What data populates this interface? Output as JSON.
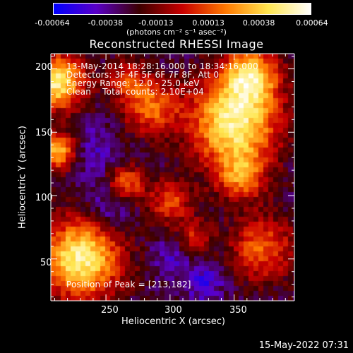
{
  "colorbar": {
    "tick_labels": [
      "-0.00064",
      "-0.00038",
      "-0.00013",
      "0.00013",
      "0.00038",
      "0.00064"
    ],
    "tick_values": [
      -0.00064,
      -0.00038,
      -0.00013,
      0.00013,
      0.00038,
      0.00064
    ],
    "units_label": "(photons cm⁻² s⁻¹ asec⁻²)",
    "range": [
      -0.00064,
      0.00064
    ],
    "stops": [
      "#0000ff",
      "#5a00c8",
      "#3c0000",
      "#c80000",
      "#ff7800",
      "#ffe650",
      "#ffffff"
    ]
  },
  "chart_data": {
    "type": "heatmap",
    "title": "Reconstructed RHESSI Image",
    "xlabel": "Heliocentric X (arcsec)",
    "ylabel": "Heliocentric Y (arcsec)",
    "xlim": [
      207,
      397
    ],
    "ylim": [
      17,
      212
    ],
    "x_ticks": [
      250,
      300,
      350
    ],
    "y_ticks": [
      50,
      100,
      150,
      200
    ],
    "annotations": [
      "13-May-2014 18:28:16.000 to 18:34:16.000",
      "Detectors: 3F 4F 5F 6F 7F 8F, Att 0",
      "Energy Range: 12.0 - 25.0 keV",
      "Clean    Total counts: 2.10E+04"
    ],
    "peak_label": "Position of Peak = [213,182]",
    "hot_regions": [
      {
        "x": 350,
        "y": 158,
        "sigma": 24,
        "amp": 1.0
      },
      {
        "x": 363,
        "y": 195,
        "sigma": 15,
        "amp": 0.8
      },
      {
        "x": 355,
        "y": 115,
        "sigma": 14,
        "amp": 0.55
      },
      {
        "x": 372,
        "y": 58,
        "sigma": 18,
        "amp": 0.55
      },
      {
        "x": 212,
        "y": 190,
        "sigma": 15,
        "amp": 1.0
      },
      {
        "x": 213,
        "y": 135,
        "sigma": 10,
        "amp": 0.8
      },
      {
        "x": 230,
        "y": 50,
        "sigma": 22,
        "amp": 1.0
      },
      {
        "x": 285,
        "y": 170,
        "sigma": 15,
        "amp": 0.6
      },
      {
        "x": 266,
        "y": 110,
        "sigma": 10,
        "amp": 0.55
      },
      {
        "x": 300,
        "y": 95,
        "sigma": 12,
        "amp": 0.5
      },
      {
        "x": 320,
        "y": 68,
        "sigma": 9,
        "amp": 0.4
      },
      {
        "x": 266,
        "y": 192,
        "sigma": 10,
        "amp": 0.45
      }
    ],
    "cold_regions": [
      {
        "x": 252,
        "y": 90,
        "sigma": 12,
        "amp": 0.7
      },
      {
        "x": 327,
        "y": 32,
        "sigma": 10,
        "amp": 0.8
      },
      {
        "x": 300,
        "y": 50,
        "sigma": 10,
        "amp": 0.5
      },
      {
        "x": 240,
        "y": 135,
        "sigma": 14,
        "amp": 0.5
      }
    ]
  },
  "footer": {
    "timestamp": "15-May-2022 07:31"
  }
}
